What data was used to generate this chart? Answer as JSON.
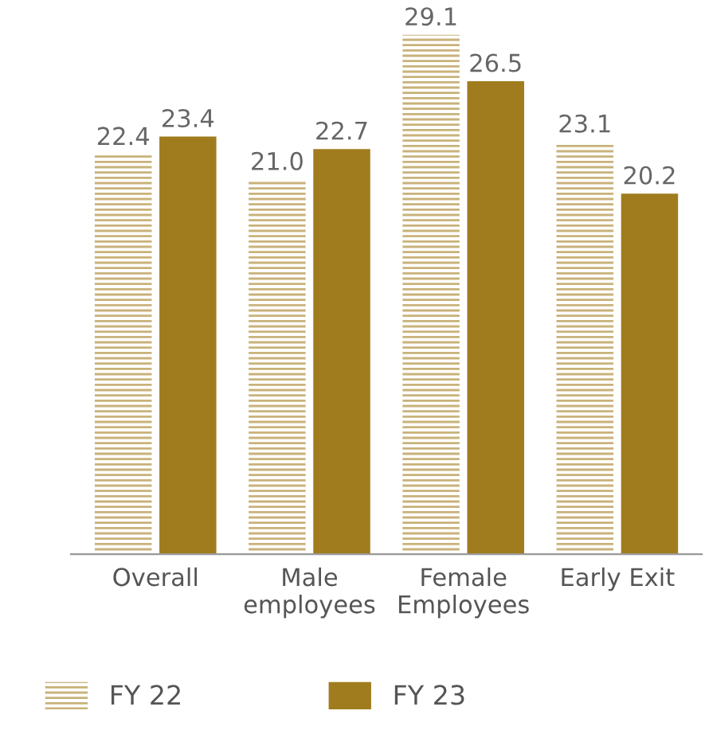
{
  "chart_data": {
    "type": "bar",
    "categories": [
      "Overall",
      "Male\nemployees",
      "Female\nEmployees",
      "Early Exit"
    ],
    "series": [
      {
        "name": "FY 22",
        "color": "#c9b27a",
        "values": [
          22.4,
          21.0,
          29.1,
          23.1
        ],
        "value_labels": [
          "22.4",
          "21.0",
          "29.1",
          "23.1"
        ]
      },
      {
        "name": "FY 23",
        "color": "#a07c1e",
        "values": [
          23.4,
          22.7,
          26.5,
          20.2
        ],
        "value_labels": [
          "23.4",
          "22.7",
          "26.5",
          "20.2"
        ]
      }
    ],
    "legend": "bottom left",
    "grid": false
  }
}
